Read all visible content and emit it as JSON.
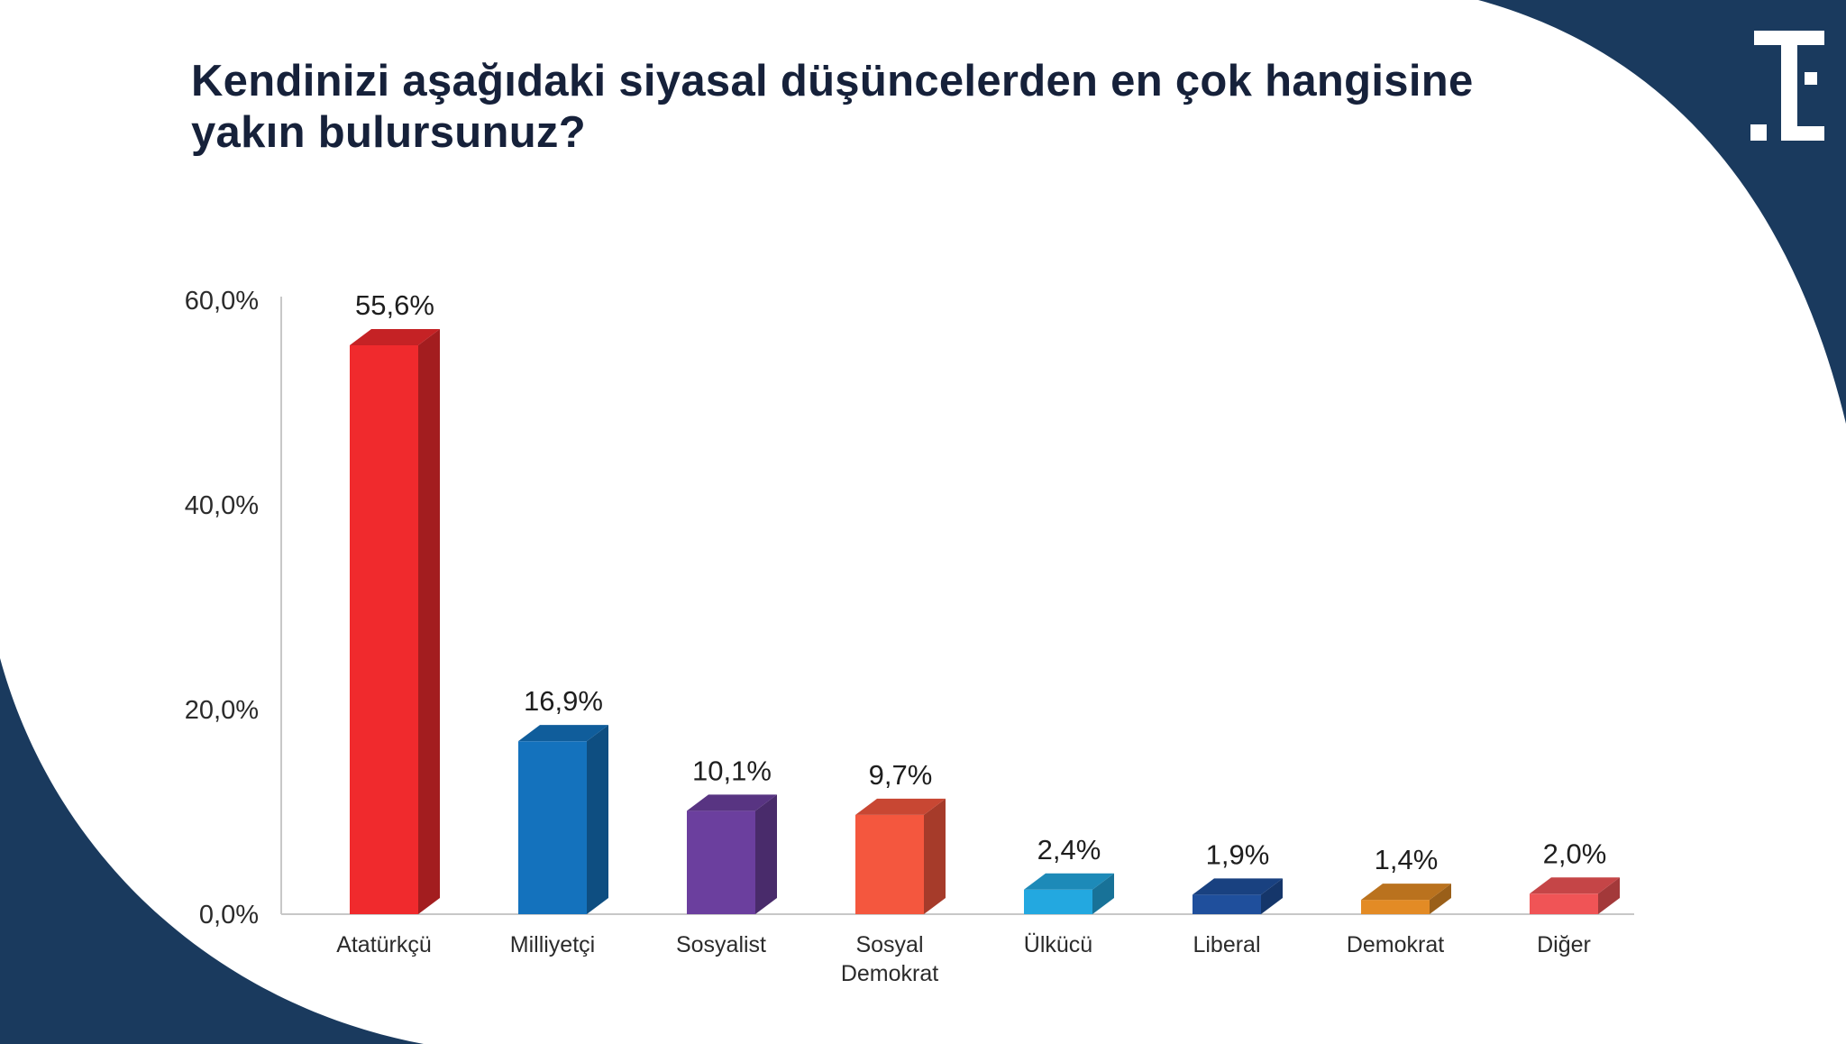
{
  "title_lines": [
    "Kendinizi aşağıdaki siyasal düşüncelerden en çok hangisine",
    "yakın bulursunuz?"
  ],
  "colors": {
    "navy": "#1a3a5e",
    "axis": "#c8c8c8"
  },
  "chart_data": {
    "type": "bar",
    "title": "Kendinizi aşağıdaki siyasal düşüncelerden en çok hangisine yakın bulursunuz?",
    "categories": [
      [
        "Atatürkçü"
      ],
      [
        "Milliyetçi"
      ],
      [
        "Sosyalist"
      ],
      [
        "Sosyal",
        "Demokrat"
      ],
      [
        "Ülkücü"
      ],
      [
        "Liberal"
      ],
      [
        "Demokrat"
      ],
      [
        "Diğer"
      ]
    ],
    "values": [
      55.6,
      16.9,
      10.1,
      9.7,
      2.4,
      1.9,
      1.4,
      2.0
    ],
    "value_labels": [
      "55,6%",
      "16,9%",
      "10,1%",
      "9,7%",
      "2,4%",
      "1,9%",
      "1,4%",
      "2,0%"
    ],
    "bar_colors": [
      "#f02a2d",
      "#1472bd",
      "#6b3f9e",
      "#f4573e",
      "#23a8e0",
      "#1f4f9c",
      "#e38b25",
      "#f05456"
    ],
    "ylim": [
      0,
      60
    ],
    "y_ticks": [
      0,
      20,
      40,
      60
    ],
    "y_tick_labels": [
      "0,0%",
      "20,0%",
      "40,0%",
      "60,0%"
    ],
    "xlabel": "",
    "ylabel": "",
    "grid": false,
    "legend": "none"
  }
}
